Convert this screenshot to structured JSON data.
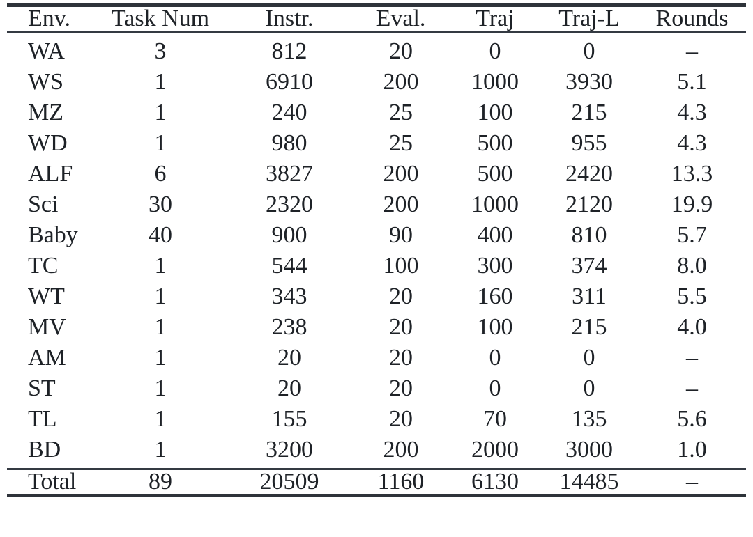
{
  "table": {
    "columns": [
      "Env.",
      "Task Num",
      "Instr.",
      "Eval.",
      "Traj",
      "Traj-L",
      "Rounds"
    ],
    "rows": [
      [
        "WA",
        "3",
        "812",
        "20",
        "0",
        "0",
        "–"
      ],
      [
        "WS",
        "1",
        "6910",
        "200",
        "1000",
        "3930",
        "5.1"
      ],
      [
        "MZ",
        "1",
        "240",
        "25",
        "100",
        "215",
        "4.3"
      ],
      [
        "WD",
        "1",
        "980",
        "25",
        "500",
        "955",
        "4.3"
      ],
      [
        "ALF",
        "6",
        "3827",
        "200",
        "500",
        "2420",
        "13.3"
      ],
      [
        "Sci",
        "30",
        "2320",
        "200",
        "1000",
        "2120",
        "19.9"
      ],
      [
        "Baby",
        "40",
        "900",
        "90",
        "400",
        "810",
        "5.7"
      ],
      [
        "TC",
        "1",
        "544",
        "100",
        "300",
        "374",
        "8.0"
      ],
      [
        "WT",
        "1",
        "343",
        "20",
        "160",
        "311",
        "5.5"
      ],
      [
        "MV",
        "1",
        "238",
        "20",
        "100",
        "215",
        "4.0"
      ],
      [
        "AM",
        "1",
        "20",
        "20",
        "0",
        "0",
        "–"
      ],
      [
        "ST",
        "1",
        "20",
        "20",
        "0",
        "0",
        "–"
      ],
      [
        "TL",
        "1",
        "155",
        "20",
        "70",
        "135",
        "5.6"
      ],
      [
        "BD",
        "1",
        "3200",
        "200",
        "2000",
        "3000",
        "1.0"
      ]
    ],
    "total_row": [
      "Total",
      "89",
      "20509",
      "1160",
      "6130",
      "14485",
      "–"
    ]
  },
  "colors": {
    "text": "#1e2227",
    "rule_thick": "#2e333a",
    "rule_thin": "#343a42",
    "background": "#ffffff"
  },
  "chart_data": {
    "type": "table",
    "title": "",
    "columns": [
      "Env.",
      "Task Num",
      "Instr.",
      "Eval.",
      "Traj",
      "Traj-L",
      "Rounds"
    ],
    "rows": [
      [
        "WA",
        3,
        812,
        20,
        0,
        0,
        null
      ],
      [
        "WS",
        1,
        6910,
        200,
        1000,
        3930,
        5.1
      ],
      [
        "MZ",
        1,
        240,
        25,
        100,
        215,
        4.3
      ],
      [
        "WD",
        1,
        980,
        25,
        500,
        955,
        4.3
      ],
      [
        "ALF",
        6,
        3827,
        200,
        500,
        2420,
        13.3
      ],
      [
        "Sci",
        30,
        2320,
        200,
        1000,
        2120,
        19.9
      ],
      [
        "Baby",
        40,
        900,
        90,
        400,
        810,
        5.7
      ],
      [
        "TC",
        1,
        544,
        100,
        300,
        374,
        8.0
      ],
      [
        "WT",
        1,
        343,
        20,
        160,
        311,
        5.5
      ],
      [
        "MV",
        1,
        238,
        20,
        100,
        215,
        4.0
      ],
      [
        "AM",
        1,
        20,
        20,
        0,
        0,
        null
      ],
      [
        "ST",
        1,
        20,
        20,
        0,
        0,
        null
      ],
      [
        "TL",
        1,
        155,
        20,
        70,
        135,
        5.6
      ],
      [
        "BD",
        1,
        3200,
        200,
        2000,
        3000,
        1.0
      ],
      [
        "Total",
        89,
        20509,
        1160,
        6130,
        14485,
        null
      ]
    ]
  }
}
